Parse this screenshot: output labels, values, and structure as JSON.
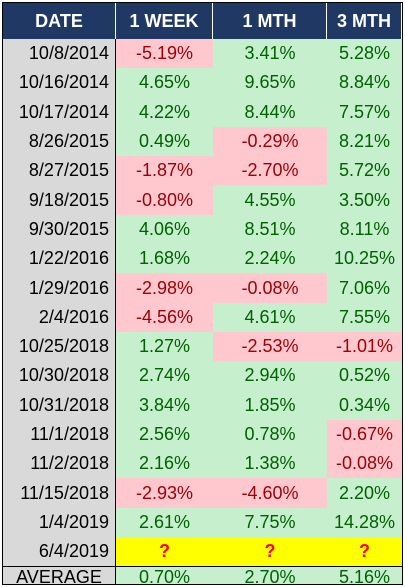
{
  "headers": [
    "DATE",
    "1 WEEK",
    "1 MTH",
    "3 MTH"
  ],
  "rows": [
    {
      "date": "10/8/2014",
      "week": "-5.19%",
      "mth": "3.41%",
      "mth3": "5.28%"
    },
    {
      "date": "10/16/2014",
      "week": "4.65%",
      "mth": "9.65%",
      "mth3": "8.84%"
    },
    {
      "date": "10/17/2014",
      "week": "4.22%",
      "mth": "8.44%",
      "mth3": "7.57%"
    },
    {
      "date": "8/26/2015",
      "week": "0.49%",
      "mth": "-0.29%",
      "mth3": "8.21%"
    },
    {
      "date": "8/27/2015",
      "week": "-1.87%",
      "mth": "-2.70%",
      "mth3": "5.72%"
    },
    {
      "date": "9/18/2015",
      "week": "-0.80%",
      "mth": "4.55%",
      "mth3": "3.50%"
    },
    {
      "date": "9/30/2015",
      "week": "4.06%",
      "mth": "8.51%",
      "mth3": "8.11%"
    },
    {
      "date": "1/22/2016",
      "week": "1.68%",
      "mth": "2.24%",
      "mth3": "10.25%"
    },
    {
      "date": "1/29/2016",
      "week": "-2.98%",
      "mth": "-0.08%",
      "mth3": "7.06%"
    },
    {
      "date": "2/4/2016",
      "week": "-4.56%",
      "mth": "4.61%",
      "mth3": "7.55%"
    },
    {
      "date": "10/25/2018",
      "week": "1.27%",
      "mth": "-2.53%",
      "mth3": "-1.01%"
    },
    {
      "date": "10/30/2018",
      "week": "2.74%",
      "mth": "2.94%",
      "mth3": "0.52%"
    },
    {
      "date": "10/31/2018",
      "week": "3.84%",
      "mth": "1.85%",
      "mth3": "0.34%"
    },
    {
      "date": "11/1/2018",
      "week": "2.56%",
      "mth": "0.78%",
      "mth3": "-0.67%"
    },
    {
      "date": "11/2/2018",
      "week": "2.16%",
      "mth": "1.38%",
      "mth3": "-0.08%"
    },
    {
      "date": "11/15/2018",
      "week": "-2.93%",
      "mth": "-4.60%",
      "mth3": "2.20%"
    },
    {
      "date": "1/4/2019",
      "week": "2.61%",
      "mth": "7.75%",
      "mth3": "14.28%"
    }
  ],
  "pending": {
    "date": "6/4/2019",
    "week": "?",
    "mth": "?",
    "mth3": "?"
  },
  "average": {
    "label": "AVERAGE",
    "week": "0.70%",
    "mth": "2.70%",
    "mth3": "5.16%"
  },
  "colors": {
    "header_bg": "#1f3864",
    "positive_bg": "#c6efce",
    "positive_text": "#006100",
    "negative_bg": "#ffc7ce",
    "negative_text": "#9c0006",
    "pending_bg": "#ffff00",
    "pending_text": "#ff0000",
    "date_bg": "#d9d9d9"
  }
}
